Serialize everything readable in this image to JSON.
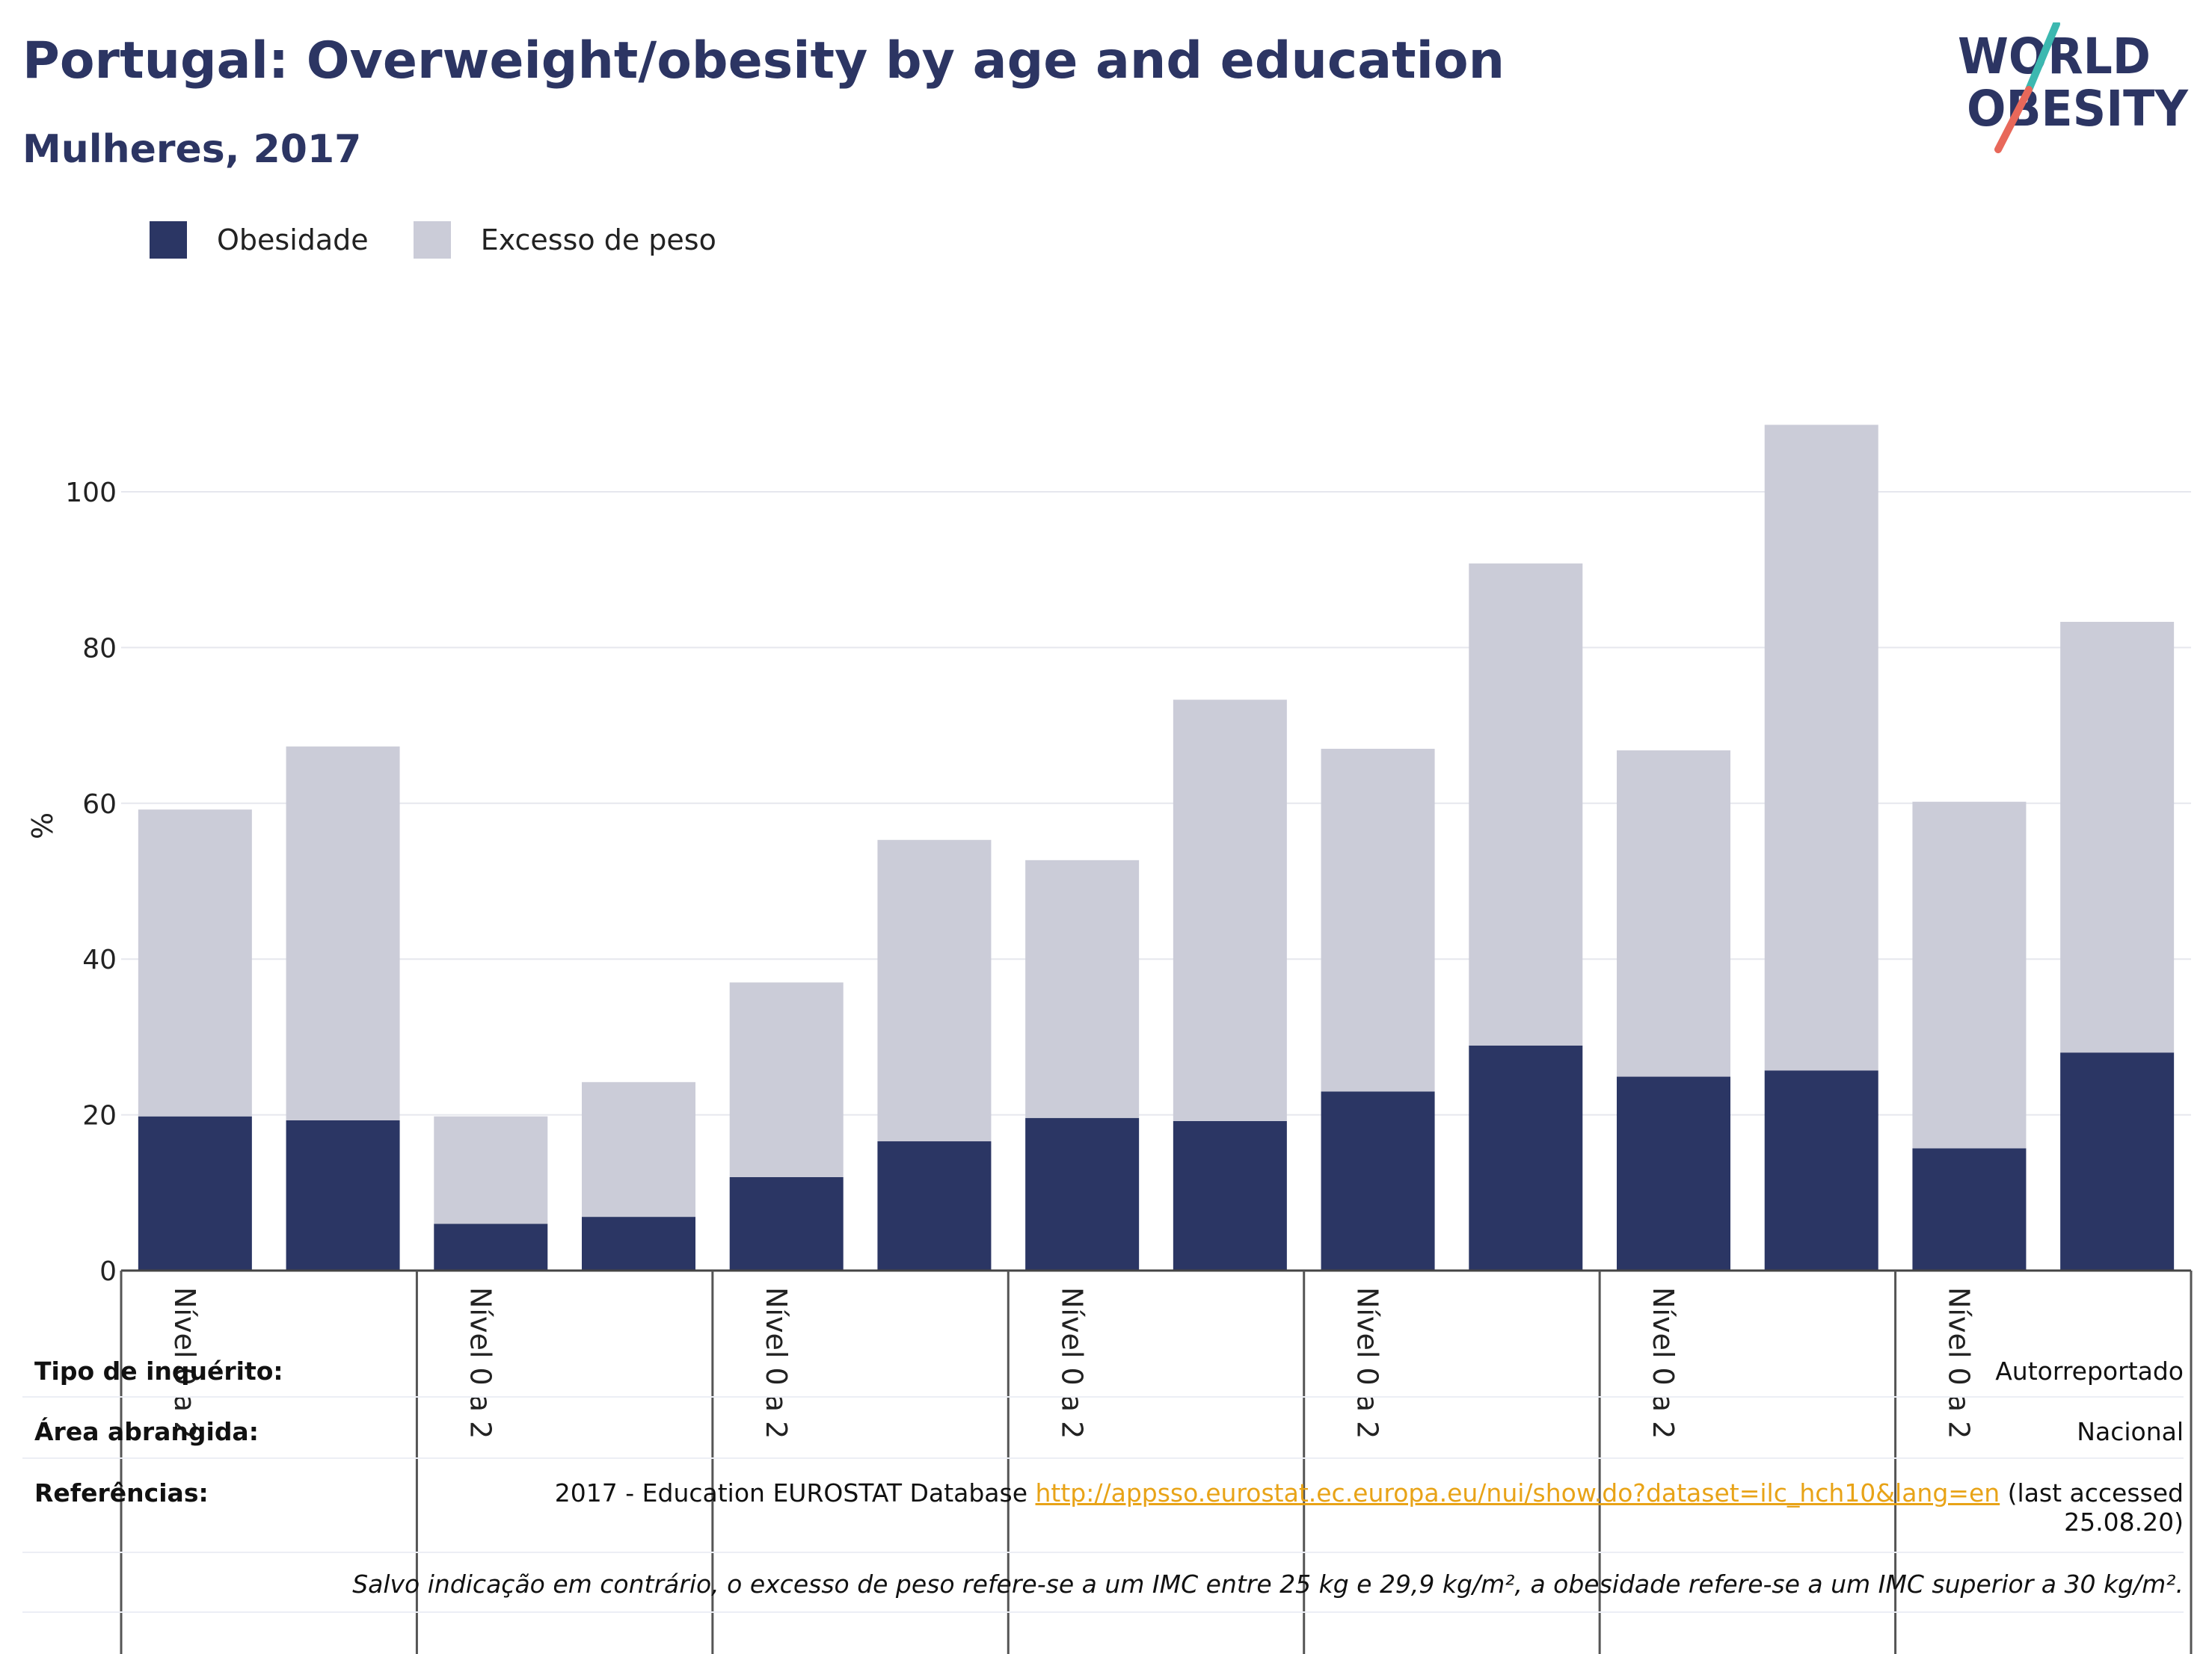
{
  "header": {
    "title": "Portugal: Overweight/obesity by age and education",
    "subtitle": "Mulheres, 2017"
  },
  "logo": {
    "line1": "WORLD",
    "line2": "OBESITY",
    "colors": {
      "text": "#2c3563",
      "slash_top": "#3cb8b0",
      "slash_bottom": "#e8685a"
    }
  },
  "legend": [
    {
      "label": "Obesidade",
      "color": "#2b3664"
    },
    {
      "label": "Excesso de peso",
      "color": "#cbccd8"
    }
  ],
  "chart_data": {
    "type": "bar",
    "stacked": true,
    "ylabel": "%",
    "ylim": [
      0,
      110
    ],
    "yticks": [
      0,
      20,
      40,
      60,
      80,
      100
    ],
    "grid": true,
    "group_labels": [
      "Nível 0 a 2",
      "Nível 0 a 2",
      "Nível 0 a 2",
      "Nível 0 a 2",
      "Nível 0 a 2",
      "Nível 0 a 2",
      "Nível 0 a 2"
    ],
    "series": [
      {
        "name": "Obesidade",
        "color": "#2b3664",
        "values": [
          19.8,
          19.3,
          6.0,
          6.9,
          12.0,
          16.6,
          19.6,
          19.2,
          23.0,
          28.9,
          24.9,
          25.7,
          15.7,
          28.0
        ]
      },
      {
        "name": "Excesso de peso",
        "color": "#cbccd8",
        "values": [
          39.4,
          48.0,
          13.8,
          17.3,
          25.0,
          38.7,
          33.1,
          54.1,
          44.0,
          61.9,
          41.9,
          82.9,
          44.5,
          55.3
        ]
      }
    ]
  },
  "info": {
    "survey_label": "Tipo de inquérito:",
    "survey_value": "Autorreportado",
    "area_label": "Área abrangida:",
    "area_value": "Nacional",
    "ref_label": "Referências:",
    "ref_text": "2017 - Education EUROSTAT Database ",
    "ref_link": "http://appsso.eurostat.ec.europa.eu/nui/show.do?dataset=ilc_hch10&lang=en",
    "ref_suffix": " (last accessed",
    "ref_date": "25.08.20)",
    "note": "Salvo indicação em contrário, o excesso de peso refere-se a um IMC entre 25 kg e 29,9 kg/m², a obesidade refere-se a um IMC superior a 30 kg/m²."
  }
}
